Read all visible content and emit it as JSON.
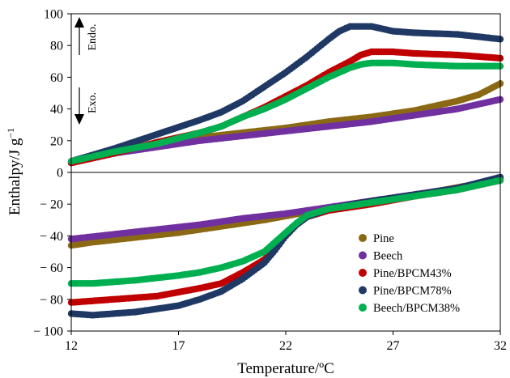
{
  "chart_data": {
    "type": "scatter",
    "xlabel": "Temperature/ºC",
    "ylabel": "Enthalpy/J g",
    "ylabel_superscript": "−1",
    "xlim": [
      12,
      32
    ],
    "ylim": [
      -100,
      100
    ],
    "xticks": [
      12,
      17,
      22,
      27,
      32
    ],
    "yticks": [
      -100,
      -80,
      -60,
      -40,
      -20,
      0,
      20,
      40,
      60,
      80,
      100
    ],
    "xtick_labels": [
      "12",
      "17",
      "22",
      "27",
      "32"
    ],
    "ytick_labels": [
      "− 100",
      "− 80",
      "− 60",
      "− 40",
      "− 20",
      "0",
      "20",
      "40",
      "60",
      "80",
      "100"
    ],
    "grid": false,
    "legend_position": "lower-right",
    "annotations": [
      {
        "text": "Endo.",
        "arrow": "up"
      },
      {
        "text": "Exo.",
        "arrow": "down"
      }
    ],
    "series": [
      {
        "name": "Pine",
        "color": "#8B6914",
        "heating": [
          [
            12,
            6
          ],
          [
            14,
            13
          ],
          [
            16,
            18
          ],
          [
            18,
            22
          ],
          [
            20,
            25
          ],
          [
            22,
            28
          ],
          [
            24,
            32
          ],
          [
            26,
            35
          ],
          [
            28,
            39
          ],
          [
            30,
            45
          ],
          [
            31,
            49
          ],
          [
            32,
            56
          ]
        ],
        "cooling": [
          [
            12,
            -46
          ],
          [
            13,
            -44
          ],
          [
            15,
            -41
          ],
          [
            17,
            -38
          ],
          [
            19,
            -34
          ],
          [
            21,
            -30
          ],
          [
            23,
            -25
          ],
          [
            25,
            -20
          ],
          [
            27,
            -16
          ],
          [
            29,
            -12
          ],
          [
            31,
            -7
          ],
          [
            32,
            -4
          ]
        ]
      },
      {
        "name": "Beech",
        "color": "#7030A0",
        "heating": [
          [
            12,
            6
          ],
          [
            14,
            12
          ],
          [
            16,
            16
          ],
          [
            18,
            20
          ],
          [
            20,
            23
          ],
          [
            22,
            26
          ],
          [
            24,
            29
          ],
          [
            26,
            32
          ],
          [
            28,
            36
          ],
          [
            30,
            40
          ],
          [
            32,
            46
          ]
        ],
        "cooling": [
          [
            12,
            -42
          ],
          [
            14,
            -39
          ],
          [
            16,
            -36
          ],
          [
            18,
            -33
          ],
          [
            20,
            -29
          ],
          [
            22,
            -26
          ],
          [
            24,
            -22
          ],
          [
            26,
            -18
          ],
          [
            28,
            -14
          ],
          [
            30,
            -10
          ],
          [
            32,
            -4
          ]
        ]
      },
      {
        "name": "Pine/BPCM43%",
        "color": "#C00000",
        "heating": [
          [
            12,
            6
          ],
          [
            14,
            12
          ],
          [
            16,
            19
          ],
          [
            18,
            25
          ],
          [
            19,
            29
          ],
          [
            20,
            35
          ],
          [
            21,
            41
          ],
          [
            22,
            48
          ],
          [
            23,
            55
          ],
          [
            24,
            63
          ],
          [
            25,
            70
          ],
          [
            25.5,
            74
          ],
          [
            26,
            76
          ],
          [
            27,
            76
          ],
          [
            28,
            75
          ],
          [
            30,
            74
          ],
          [
            32,
            72
          ]
        ],
        "cooling": [
          [
            12,
            -82
          ],
          [
            13,
            -81
          ],
          [
            14,
            -80
          ],
          [
            16,
            -78
          ],
          [
            18,
            -73
          ],
          [
            19,
            -70
          ],
          [
            20,
            -63
          ],
          [
            21,
            -55
          ],
          [
            21.5,
            -48
          ],
          [
            22,
            -40
          ],
          [
            22.5,
            -33
          ],
          [
            23,
            -28
          ],
          [
            24,
            -24
          ],
          [
            26,
            -20
          ],
          [
            28,
            -15
          ],
          [
            30,
            -11
          ],
          [
            32,
            -5
          ]
        ]
      },
      {
        "name": "Pine/BPCM78%",
        "color": "#1F3864",
        "heating": [
          [
            12,
            7
          ],
          [
            13,
            11
          ],
          [
            14,
            15
          ],
          [
            16,
            24
          ],
          [
            18,
            33
          ],
          [
            19,
            38
          ],
          [
            20,
            45
          ],
          [
            21,
            54
          ],
          [
            22,
            63
          ],
          [
            23,
            73
          ],
          [
            24,
            84
          ],
          [
            24.5,
            89
          ],
          [
            25,
            92
          ],
          [
            26,
            92
          ],
          [
            27,
            89
          ],
          [
            28,
            88
          ],
          [
            30,
            87
          ],
          [
            32,
            84
          ]
        ],
        "cooling": [
          [
            12,
            -89
          ],
          [
            13,
            -90
          ],
          [
            14,
            -89
          ],
          [
            15,
            -88
          ],
          [
            16,
            -86
          ],
          [
            17,
            -84
          ],
          [
            18,
            -80
          ],
          [
            19,
            -75
          ],
          [
            20,
            -67
          ],
          [
            21,
            -57
          ],
          [
            21.5,
            -49
          ],
          [
            22,
            -40
          ],
          [
            22.5,
            -33
          ],
          [
            23,
            -28
          ],
          [
            24,
            -23
          ],
          [
            26,
            -18
          ],
          [
            28,
            -14
          ],
          [
            30,
            -10
          ],
          [
            32,
            -3
          ]
        ]
      },
      {
        "name": "Beech/BPCM38%",
        "color": "#00B050",
        "heating": [
          [
            12,
            7
          ],
          [
            14,
            13
          ],
          [
            16,
            18
          ],
          [
            18,
            25
          ],
          [
            19,
            29
          ],
          [
            20,
            35
          ],
          [
            21,
            40
          ],
          [
            22,
            46
          ],
          [
            23,
            53
          ],
          [
            24,
            60
          ],
          [
            25,
            66
          ],
          [
            25.5,
            68
          ],
          [
            26,
            69
          ],
          [
            27,
            69
          ],
          [
            28,
            68
          ],
          [
            30,
            67
          ],
          [
            32,
            67
          ]
        ],
        "cooling": [
          [
            12,
            -70
          ],
          [
            13,
            -70
          ],
          [
            15,
            -68
          ],
          [
            17,
            -65
          ],
          [
            18,
            -63
          ],
          [
            19,
            -60
          ],
          [
            20,
            -56
          ],
          [
            21,
            -50
          ],
          [
            21.5,
            -44
          ],
          [
            22,
            -38
          ],
          [
            22.5,
            -32
          ],
          [
            23,
            -27
          ],
          [
            24,
            -23
          ],
          [
            26,
            -19
          ],
          [
            28,
            -15
          ],
          [
            30,
            -11
          ],
          [
            32,
            -5
          ]
        ]
      }
    ]
  }
}
